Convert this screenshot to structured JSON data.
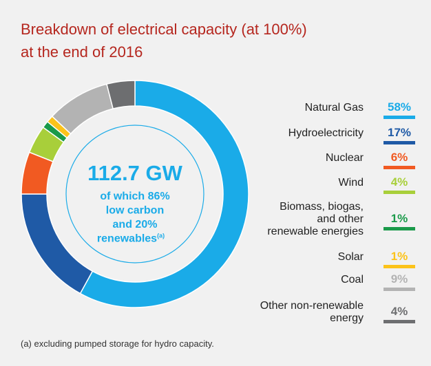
{
  "chart_data": {
    "type": "donut",
    "title": "Breakdown of electrical capacity (at 100%)\nat the end of 2016",
    "center_value": "112.7 GW",
    "center_lines": [
      "of which 86%",
      "low carbon",
      "and 20%",
      "renewables"
    ],
    "center_note": "(a)",
    "categories": [
      "Natural Gas",
      "Hydroelectricity",
      "Nuclear",
      "Wind",
      "Biomass, biogas,\nand other\nrenewable energies",
      "Solar",
      "Coal",
      "Other non-renewable\nenergy"
    ],
    "values": [
      58,
      17,
      6,
      4,
      1,
      1,
      9,
      4
    ],
    "value_labels": [
      "58%",
      "17%",
      "6%",
      "4%",
      "1%",
      "1%",
      "9%",
      "4%"
    ],
    "colors": [
      "#1aabe8",
      "#1f5aa6",
      "#f15a22",
      "#a8cf3a",
      "#1a9a4a",
      "#fcc31a",
      "#b3b3b3",
      "#6d6e70"
    ],
    "footnote": "(a) excluding pumped storage for hydro capacity."
  }
}
